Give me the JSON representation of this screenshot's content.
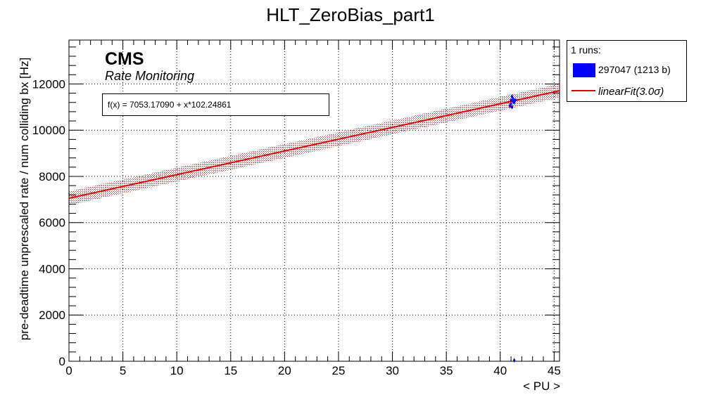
{
  "chart_data": {
    "type": "scatter",
    "title": "HLT_ZeroBias_part1",
    "xlabel": "< PU >",
    "ylabel": "pre-deadtime unprescaled rate / num colliding bx [Hz]",
    "xlim": [
      0,
      45.5
    ],
    "ylim": [
      0,
      13900
    ],
    "x_ticks": [
      0,
      5,
      10,
      15,
      20,
      25,
      30,
      35,
      40,
      45
    ],
    "y_ticks": [
      0,
      2000,
      4000,
      6000,
      8000,
      10000,
      12000
    ],
    "grid": true,
    "legend_position": "right",
    "experiment_label": "CMS",
    "experiment_sublabel": "Rate Monitoring",
    "fit": {
      "formula": "f(x) = 7053.17090 + x*102.24861",
      "intercept": 7053.1709,
      "slope": 102.24861,
      "band_sigma": 3.0,
      "band_halfwidth": 300,
      "color": "#e00000"
    },
    "series": [
      {
        "name": "297047 (1213 b)",
        "color": "#0000ff",
        "points": [
          {
            "x": 41.1,
            "y": 11450
          },
          {
            "x": 41.0,
            "y": 11300
          },
          {
            "x": 41.2,
            "y": 11250
          },
          {
            "x": 41.0,
            "y": 11150
          },
          {
            "x": 41.3,
            "y": 11200
          },
          {
            "x": 40.9,
            "y": 11050
          },
          {
            "x": 41.1,
            "y": 11000
          },
          {
            "x": 41.4,
            "y": 11300
          },
          {
            "x": 41.2,
            "y": 11350
          },
          {
            "x": 41.3,
            "y": 40
          }
        ]
      }
    ],
    "legend": {
      "header": "1 runs:",
      "run_label": "297047 (1213 b)",
      "fit_label": "linearFit(3.0σ)"
    }
  }
}
